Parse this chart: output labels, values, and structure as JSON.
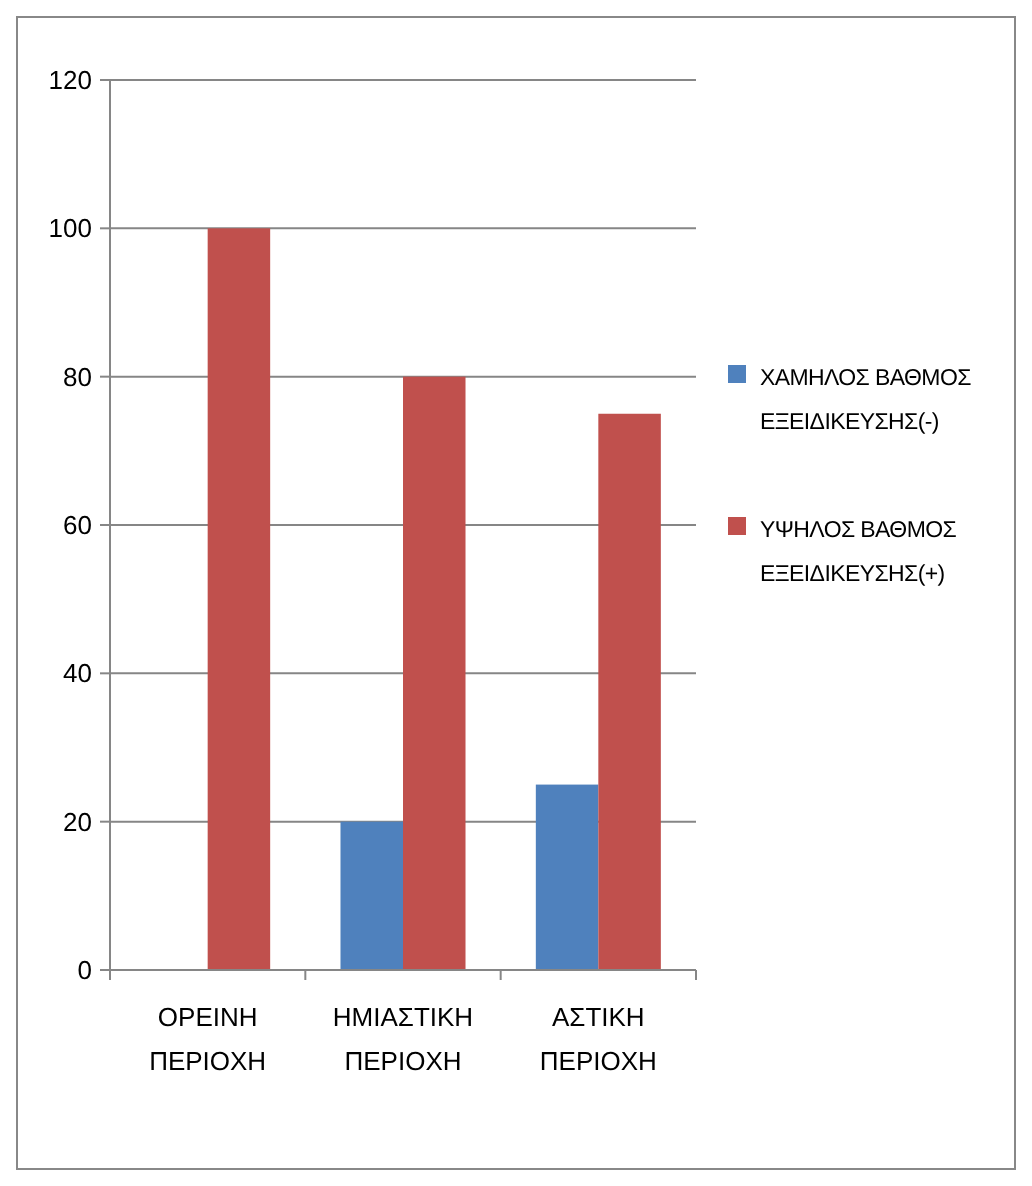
{
  "chart_data": {
    "type": "bar",
    "categories": [
      "ΟΡΕΙΝΗ ΠΕΡΙΟΧΗ",
      "ΗΜΙΑΣΤΙΚΗ ΠΕΡΙΟΧΗ",
      "ΑΣΤΙΚΗ ΠΕΡΙΟΧΗ"
    ],
    "series": [
      {
        "name": "ΧΑΜΗΛΟΣ ΒΑΘΜΟΣ ΕΞΕΙΔΙΚΕΥΣΗΣ(-)",
        "color": "#4f81bd",
        "values": [
          0,
          20,
          25
        ]
      },
      {
        "name": "ΥΨΗΛΟΣ ΒΑΘΜΟΣ ΕΞΕΙΔΙΚΕΥΣΗΣ(+)",
        "color": "#c0504d",
        "values": [
          100,
          80,
          75
        ]
      }
    ],
    "ylim": [
      0,
      120
    ],
    "yticks": [
      0,
      20,
      40,
      60,
      80,
      100,
      120
    ],
    "grid": "y",
    "legend": "right"
  }
}
